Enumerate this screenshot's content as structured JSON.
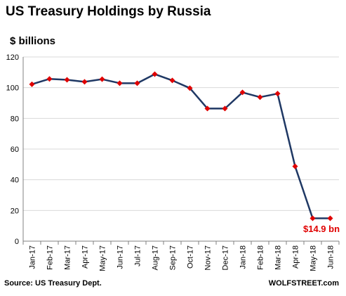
{
  "chart_data": {
    "type": "line",
    "title": "US Treasury Holdings by Russia",
    "ylabel": "$ billions",
    "xlabel": "",
    "categories": [
      "Jan-17",
      "Feb-17",
      "Mar-17",
      "Apr-17",
      "May-17",
      "Jun-17",
      "Jul-17",
      "Aug-17",
      "Sep-17",
      "Oct-17",
      "Nov-17",
      "Dec-17",
      "Jan-18",
      "Feb-18",
      "Mar-18",
      "Apr-18",
      "May-18",
      "Jun-18"
    ],
    "series": [
      {
        "values": [
          102.2,
          105.7,
          105.1,
          103.8,
          105.5,
          102.9,
          102.9,
          108.8,
          104.7,
          99.7,
          86.4,
          86.4,
          96.9,
          93.8,
          96.1,
          48.7,
          14.9,
          14.9
        ]
      }
    ],
    "ylim": [
      0,
      120
    ],
    "yticks": [
      0,
      20,
      40,
      60,
      80,
      100,
      120
    ],
    "grid": true,
    "annotation": "$14.9 bn",
    "source": "Source: US Treasury Dept.",
    "credit": "WOLFSTREET.com",
    "colors": {
      "line": "#1f3864",
      "marker": "#e00000",
      "grid": "#d9d9d9",
      "annotation": "#e00000"
    }
  }
}
